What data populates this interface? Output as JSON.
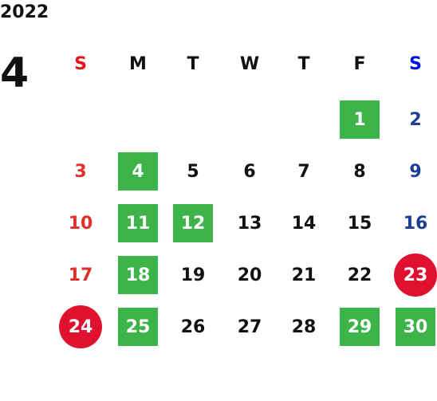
{
  "year": "2022",
  "month": "4",
  "weekdays": [
    "S",
    "M",
    "T",
    "W",
    "T",
    "F",
    "S"
  ],
  "weekday_colors": [
    "#e8141c",
    "#111111",
    "#111111",
    "#111111",
    "#111111",
    "#111111",
    "#0010e0"
  ],
  "day_colors": [
    "#e0302a",
    "#111111",
    "#111111",
    "#111111",
    "#111111",
    "#111111",
    "#1c3f94"
  ],
  "highlight_colors": {
    "green": "#3cb44a",
    "red": "#e0102f"
  },
  "weeks": [
    [
      null,
      null,
      null,
      null,
      null,
      {
        "day": 1,
        "highlight": "green"
      },
      {
        "day": 2
      }
    ],
    [
      {
        "day": 3
      },
      {
        "day": 4,
        "highlight": "green"
      },
      {
        "day": 5
      },
      {
        "day": 6
      },
      {
        "day": 7
      },
      {
        "day": 8
      },
      {
        "day": 9
      }
    ],
    [
      {
        "day": 10
      },
      {
        "day": 11,
        "highlight": "green"
      },
      {
        "day": 12,
        "highlight": "green"
      },
      {
        "day": 13
      },
      {
        "day": 14
      },
      {
        "day": 15
      },
      {
        "day": 16
      }
    ],
    [
      {
        "day": 17
      },
      {
        "day": 18,
        "highlight": "green"
      },
      {
        "day": 19
      },
      {
        "day": 20
      },
      {
        "day": 21
      },
      {
        "day": 22
      },
      {
        "day": 23,
        "highlight": "red"
      }
    ],
    [
      {
        "day": 24,
        "highlight": "red"
      },
      {
        "day": 25,
        "highlight": "green"
      },
      {
        "day": 26
      },
      {
        "day": 27
      },
      {
        "day": 28
      },
      {
        "day": 29,
        "highlight": "green"
      },
      {
        "day": 30,
        "highlight": "green"
      }
    ]
  ]
}
